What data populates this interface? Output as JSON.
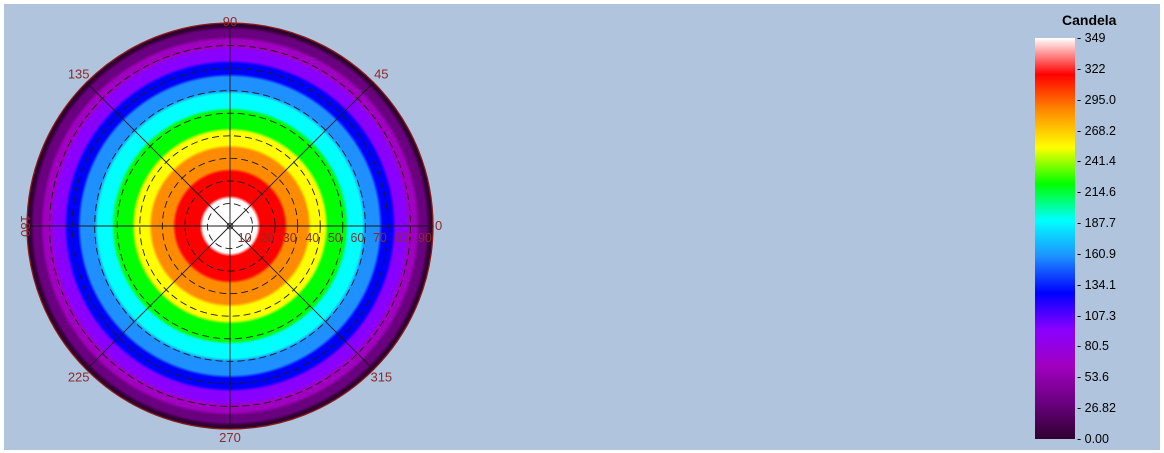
{
  "chart_data": {
    "type": "heatmap",
    "projection": "polar",
    "angle_labels": [
      "0",
      "45",
      "90",
      "135",
      "180",
      "225",
      "270",
      "315"
    ],
    "radial_labels": [
      "10",
      "20",
      "30",
      "40",
      "50",
      "60",
      "70",
      "80",
      "90"
    ],
    "radial_range": [
      0,
      90
    ],
    "colorbar": {
      "title": "Candela",
      "ticks": [
        "349",
        "322",
        "295.0",
        "268.2",
        "241.4",
        "214.6",
        "187.7",
        "160.9",
        "134.1",
        "107.3",
        "80.5",
        "53.6",
        "26.82",
        "0.00"
      ],
      "range": [
        0,
        349
      ],
      "colors": [
        "#ffffff",
        "#ff0000",
        "#ff8c00",
        "#ffff00",
        "#00ff00",
        "#00ffff",
        "#1e90ff",
        "#0000ff",
        "#8a00ff",
        "#a000c0",
        "#6a0080",
        "#300030"
      ]
    },
    "intensity_profile": {
      "angle": [
        0,
        10,
        20,
        30,
        40,
        50,
        60,
        70,
        80,
        90
      ],
      "candela": [
        349,
        340,
        318,
        286,
        250,
        212,
        170,
        125,
        70,
        0
      ]
    },
    "grid": true,
    "legend_placement": "right"
  }
}
